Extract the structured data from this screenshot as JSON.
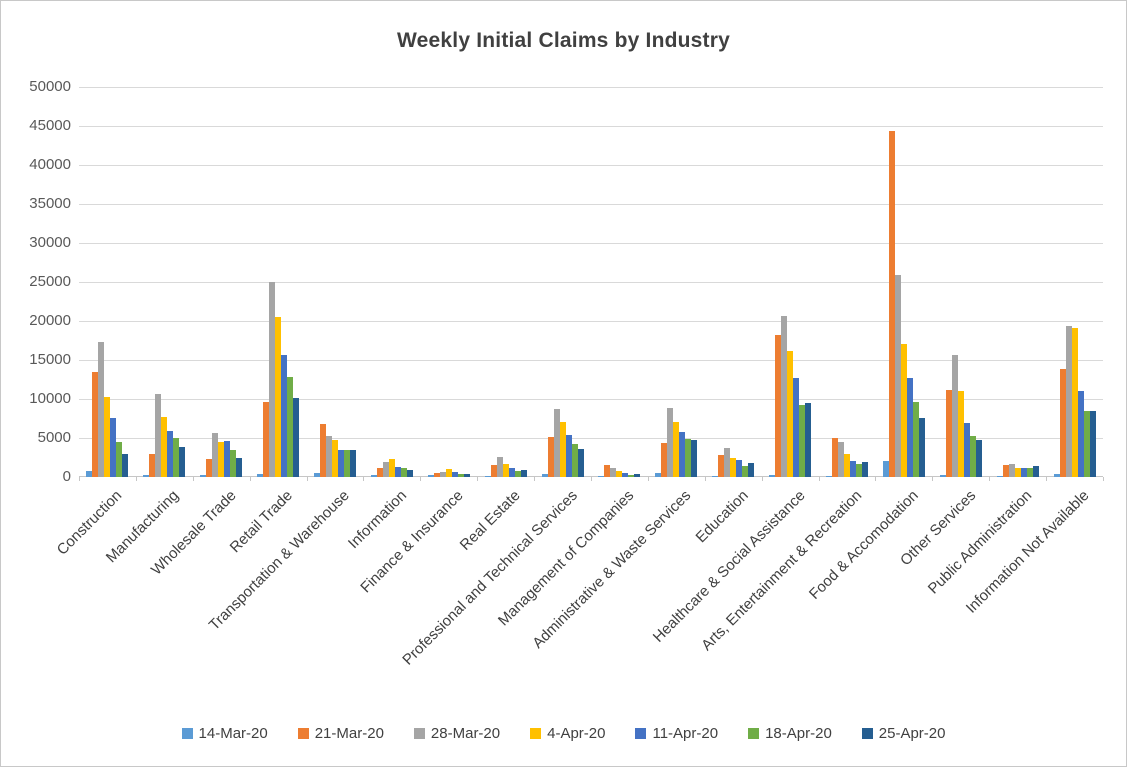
{
  "chart_data": {
    "type": "bar",
    "title": "Weekly Initial Claims by Industry",
    "xlabel": "",
    "ylabel": "",
    "ylim": [
      0,
      50000
    ],
    "ytick_step": 5000,
    "yticks": [
      0,
      5000,
      10000,
      15000,
      20000,
      25000,
      30000,
      35000,
      40000,
      45000,
      50000
    ],
    "grid": true,
    "legend_position": "bottom",
    "categories": [
      "Construction",
      "Manufacturing",
      "Wholesale Trade",
      "Retail Trade",
      "Transportation & Warehouse",
      "Information",
      "Finance & Insurance",
      "Real Estate",
      "Professional and Technical Services",
      "Management of Companies",
      "Administrative & Waste Services",
      "Education",
      "Healthcare & Social Assistance",
      "Arts, Entertainment & Recreation",
      "Food & Accomodation",
      "Other Services",
      "Public Administration",
      "Information Not Available"
    ],
    "series": [
      {
        "name": "14-Mar-20",
        "color": "#5B9BD5",
        "values": [
          800,
          300,
          250,
          400,
          500,
          200,
          200,
          150,
          450,
          100,
          500,
          150,
          300,
          100,
          2100,
          300,
          150,
          350
        ]
      },
      {
        "name": "21-Mar-20",
        "color": "#ED7D31",
        "values": [
          13500,
          3000,
          2300,
          9600,
          6800,
          1100,
          500,
          1550,
          5100,
          1500,
          4300,
          2800,
          18200,
          5000,
          44400,
          11100,
          1600,
          13900
        ]
      },
      {
        "name": "28-Mar-20",
        "color": "#A5A5A5",
        "values": [
          17300,
          10600,
          5600,
          25000,
          5200,
          1900,
          700,
          2600,
          8700,
          1100,
          8800,
          3700,
          20700,
          4500,
          25900,
          15600,
          1700,
          19300
        ]
      },
      {
        "name": "4-Apr-20",
        "color": "#FFC000",
        "values": [
          10300,
          7700,
          4500,
          20500,
          4700,
          2300,
          1000,
          1700,
          7000,
          800,
          7100,
          2500,
          16200,
          3000,
          17100,
          11000,
          1200,
          19100
        ]
      },
      {
        "name": "11-Apr-20",
        "color": "#4472C4",
        "values": [
          7600,
          5900,
          4600,
          15700,
          3400,
          1300,
          600,
          1200,
          5400,
          500,
          5800,
          2200,
          12700,
          2000,
          12700,
          6900,
          1100,
          11000
        ]
      },
      {
        "name": "18-Apr-20",
        "color": "#70AD47",
        "values": [
          4500,
          5000,
          3400,
          12800,
          3400,
          1100,
          350,
          800,
          4200,
          300,
          4900,
          1400,
          9200,
          1700,
          9600,
          5300,
          1100,
          8500
        ]
      },
      {
        "name": "25-Apr-20",
        "color": "#255E91",
        "values": [
          2900,
          3900,
          2400,
          10100,
          3400,
          900,
          450,
          900,
          3600,
          400,
          4700,
          1800,
          9500,
          1900,
          7600,
          4800,
          1400,
          8400
        ]
      }
    ]
  }
}
